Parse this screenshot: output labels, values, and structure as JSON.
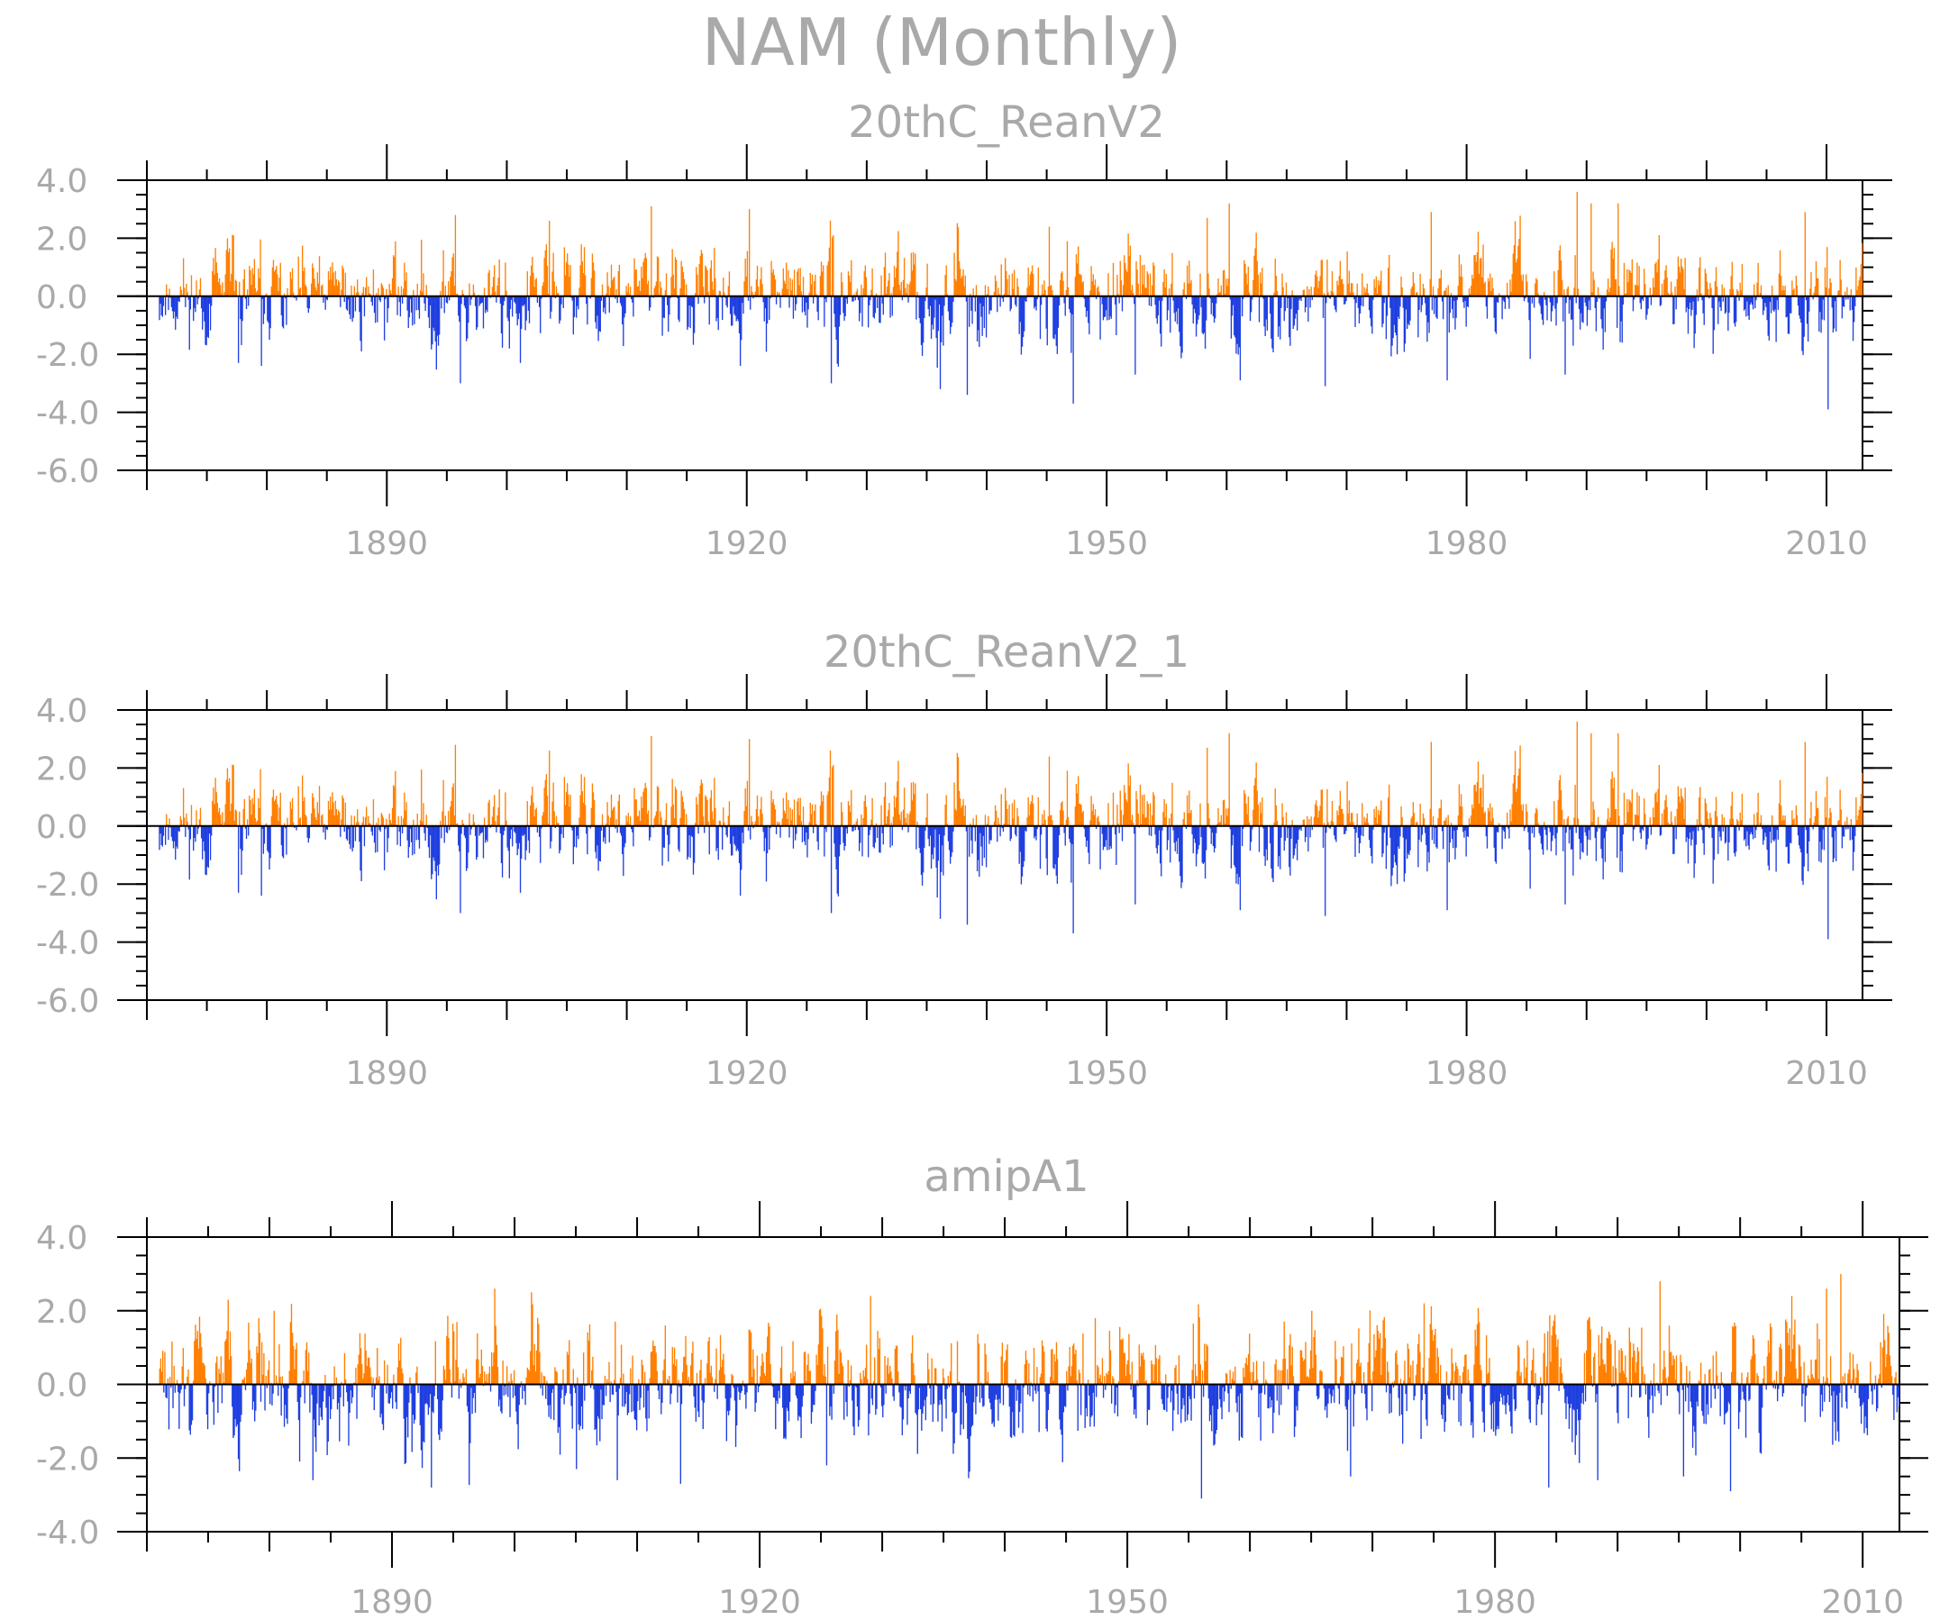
{
  "figure_title": "NAM (Monthly)",
  "colors": {
    "positive": "#ff7f00",
    "negative": "#1f3fe0",
    "text": "#a9a9a9",
    "axis": "#000000"
  },
  "chart_data": [
    {
      "type": "bar",
      "title": "20thC_ReanV2",
      "xlabel": "",
      "ylabel": "",
      "ylim": [
        -6.0,
        4.0
      ],
      "yticks": [
        "4.0",
        "2.0",
        "0.0",
        "-2.0",
        "-4.0",
        "-6.0"
      ],
      "ytick_values": [
        4,
        2,
        0,
        -2,
        -4,
        -6
      ],
      "xlim": [
        1870,
        2013
      ],
      "xtick_values": [
        1890,
        1920,
        1950,
        1980,
        2010
      ],
      "xticks": [
        "1890",
        "1920",
        "1950",
        "1980",
        "2010"
      ],
      "x_start": 1871,
      "x_end": 2012,
      "positive_color": "#ff7f00",
      "negative_color": "#1f3fe0",
      "seed": 11,
      "notable_values": [
        [
          1895.7,
          2.8
        ],
        [
          1903.5,
          2.6
        ],
        [
          1912.0,
          3.1
        ],
        [
          1920.2,
          3.0
        ],
        [
          1945.2,
          2.4
        ],
        [
          1958.3,
          2.7
        ],
        [
          1960.2,
          3.2
        ],
        [
          1977.0,
          2.9
        ],
        [
          1989.2,
          3.6
        ],
        [
          1990.3,
          3.2
        ],
        [
          1992.6,
          3.2
        ],
        [
          2008.2,
          2.9
        ],
        [
          1896.1,
          -3.0
        ],
        [
          1927.0,
          -3.0
        ],
        [
          1936.1,
          -3.2
        ],
        [
          1938.3,
          -3.4
        ],
        [
          1947.2,
          -3.7
        ],
        [
          1952.3,
          -2.7
        ],
        [
          1961.1,
          -2.9
        ],
        [
          1968.2,
          -3.1
        ],
        [
          1978.3,
          -2.9
        ],
        [
          1988.2,
          -2.7
        ],
        [
          2010.1,
          -3.9
        ],
        [
          1877.6,
          -2.3
        ],
        [
          1879.5,
          -2.4
        ],
        [
          1919.4,
          -2.4
        ],
        [
          1901.1,
          -2.3
        ]
      ]
    },
    {
      "type": "bar",
      "title": "20thC_ReanV2_1",
      "xlabel": "",
      "ylabel": "",
      "ylim": [
        -6.0,
        4.0
      ],
      "yticks": [
        "4.0",
        "2.0",
        "0.0",
        "-2.0",
        "-4.0",
        "-6.0"
      ],
      "ytick_values": [
        4,
        2,
        0,
        -2,
        -4,
        -6
      ],
      "xlim": [
        1870,
        2013
      ],
      "xtick_values": [
        1890,
        1920,
        1950,
        1980,
        2010
      ],
      "xticks": [
        "1890",
        "1920",
        "1950",
        "1980",
        "2010"
      ],
      "x_start": 1871,
      "x_end": 2012,
      "positive_color": "#ff7f00",
      "negative_color": "#1f3fe0",
      "seed": 11,
      "notable_values": [
        [
          1895.7,
          2.8
        ],
        [
          1903.5,
          2.6
        ],
        [
          1912.0,
          3.1
        ],
        [
          1920.2,
          3.0
        ],
        [
          1945.2,
          2.4
        ],
        [
          1958.3,
          2.7
        ],
        [
          1960.2,
          3.2
        ],
        [
          1977.0,
          2.9
        ],
        [
          1989.2,
          3.6
        ],
        [
          1990.3,
          3.2
        ],
        [
          1992.6,
          3.2
        ],
        [
          2008.2,
          2.9
        ],
        [
          1896.1,
          -3.0
        ],
        [
          1927.0,
          -3.0
        ],
        [
          1936.1,
          -3.2
        ],
        [
          1938.3,
          -3.4
        ],
        [
          1947.2,
          -3.7
        ],
        [
          1952.3,
          -2.7
        ],
        [
          1961.1,
          -2.9
        ],
        [
          1968.2,
          -3.1
        ],
        [
          1978.3,
          -2.9
        ],
        [
          1988.2,
          -2.7
        ],
        [
          2010.1,
          -3.9
        ],
        [
          1877.6,
          -2.3
        ],
        [
          1879.5,
          -2.4
        ],
        [
          1919.4,
          -2.4
        ],
        [
          1901.1,
          -2.3
        ]
      ]
    },
    {
      "type": "bar",
      "title": "amipA1",
      "xlabel": "",
      "ylabel": "",
      "ylim": [
        -4.0,
        4.0
      ],
      "yticks": [
        "4.0",
        "2.0",
        "0.0",
        "-2.0",
        "-4.0"
      ],
      "ytick_values": [
        4,
        2,
        0,
        -2,
        -4
      ],
      "xlim": [
        1870,
        2013
      ],
      "xtick_values": [
        1890,
        1920,
        1950,
        1980,
        2010
      ],
      "xticks": [
        "1890",
        "1920",
        "1950",
        "1980",
        "2010"
      ],
      "x_start": 1871,
      "x_end": 2012,
      "positive_color": "#ff7f00",
      "negative_color": "#1f3fe0",
      "seed": 29,
      "notable_values": [
        [
          1876.6,
          2.3
        ],
        [
          1880.3,
          2.0
        ],
        [
          1898.3,
          2.6
        ],
        [
          1901.3,
          2.5
        ],
        [
          1929.0,
          2.4
        ],
        [
          1947.3,
          1.8
        ],
        [
          1965.0,
          2.0
        ],
        [
          1974.2,
          2.2
        ],
        [
          1993.4,
          2.8
        ],
        [
          2004.2,
          2.4
        ],
        [
          2007.0,
          2.6
        ],
        [
          2008.2,
          3.0
        ],
        [
          1883.5,
          -2.6
        ],
        [
          1893.2,
          -2.8
        ],
        [
          1905.0,
          -2.3
        ],
        [
          1908.3,
          -2.6
        ],
        [
          1913.5,
          -2.7
        ],
        [
          1925.4,
          -2.2
        ],
        [
          1956.0,
          -3.1
        ],
        [
          1968.2,
          -2.5
        ],
        [
          1984.3,
          -2.8
        ],
        [
          1988.3,
          -2.6
        ],
        [
          1999.2,
          -2.9
        ],
        [
          1995.3,
          -2.5
        ]
      ]
    }
  ]
}
